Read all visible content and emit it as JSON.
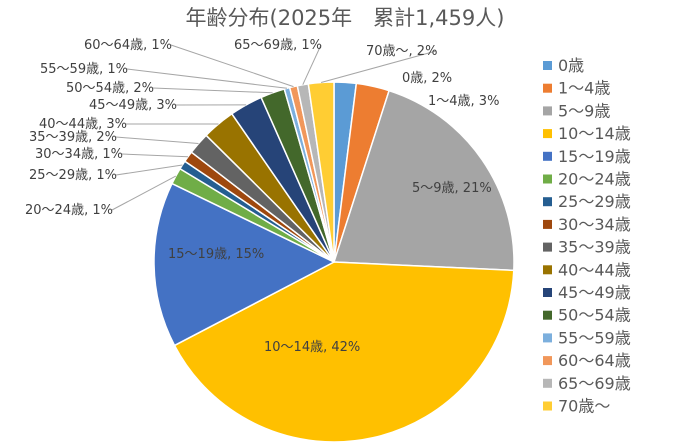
{
  "chart_data": {
    "type": "pie",
    "title": "年齢分布(2025年　累計1,459人)",
    "legend_position": "right",
    "categories": [
      "0歳",
      "1～4歳",
      "5～9歳",
      "10～14歳",
      "15～19歳",
      "20～24歳",
      "25～29歳",
      "30～34歳",
      "35～39歳",
      "40～44歳",
      "45～49歳",
      "50～54歳",
      "55～59歳",
      "60～64歳",
      "65～69歳",
      "70歳～"
    ],
    "values": [
      2,
      3,
      21,
      42,
      15,
      1.5,
      0.8,
      1,
      2,
      3,
      3,
      2.2,
      0.5,
      0.7,
      1,
      2.3
    ],
    "data_labels": [
      "0歳, 2%",
      "1～4歳, 3%",
      "5～9歳, 21%",
      "10～14歳, 42%",
      "15～19歳, 15%",
      "20～24歳, 1%",
      "25～29歳, 1%",
      "30～34歳, 1%",
      "35～39歳, 2%",
      "40～44歳, 3%",
      "45～49歳, 3%",
      "50～54歳, 2%",
      "55～59歳, 1%",
      "60～64歳, 1%",
      "65～69歳, 1%",
      "70歳～, 2%"
    ],
    "colors": [
      "#5B9BD5",
      "#ED7D31",
      "#A5A5A5",
      "#FFC000",
      "#4472C4",
      "#70AD47",
      "#255E91",
      "#9E480E",
      "#636363",
      "#997300",
      "#264478",
      "#43682B",
      "#7CAFDD",
      "#F1975A",
      "#B7B7B7",
      "#FFCD33"
    ]
  }
}
